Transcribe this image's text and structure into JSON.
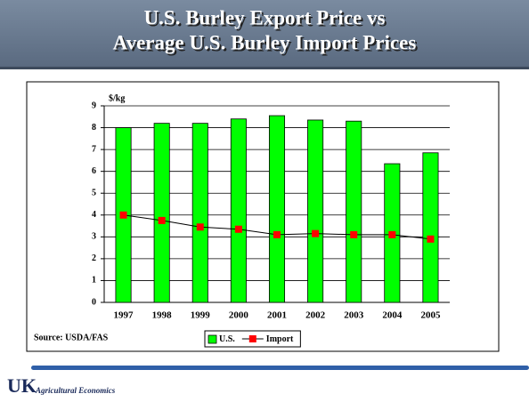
{
  "header": {
    "title": [
      "U.S. Burley Export Price vs",
      "Average U.S. Burley Import Prices"
    ]
  },
  "chart_data": {
    "type": "bar",
    "y_label": "$/kg",
    "source": "Source:  USDA/FAS",
    "categories": [
      "1997",
      "1998",
      "1999",
      "2000",
      "2001",
      "2002",
      "2003",
      "2004",
      "2005"
    ],
    "series": [
      {
        "name": "U.S.",
        "color": "#00ff00",
        "values": [
          8.0,
          8.2,
          8.2,
          8.4,
          8.55,
          8.35,
          8.3,
          6.35,
          6.85
        ]
      },
      {
        "name": "Import",
        "type": "line",
        "color": "#ff0000",
        "values": [
          4.0,
          3.75,
          3.45,
          3.35,
          3.1,
          3.15,
          3.1,
          3.1,
          2.9
        ]
      }
    ],
    "ylim": [
      0,
      9
    ],
    "yticks": [
      0,
      1,
      2,
      3,
      4,
      5,
      6,
      7,
      8,
      9
    ],
    "grid": true
  },
  "footer": {
    "logo": "UK",
    "logo_subtitle": "Agricultural Economics"
  }
}
